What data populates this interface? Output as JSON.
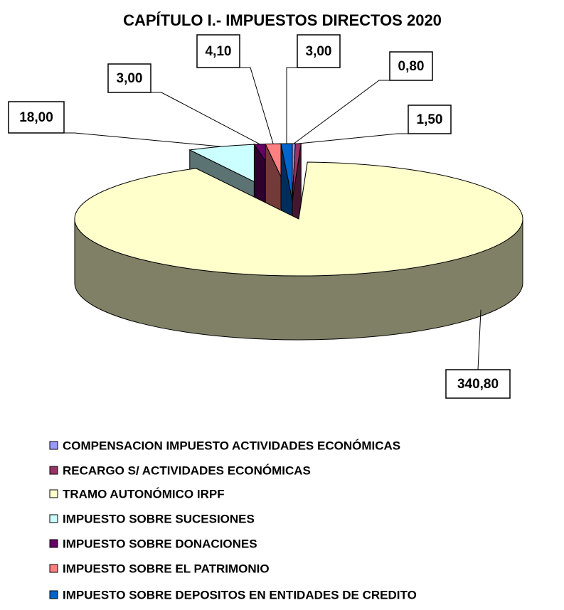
{
  "chart_data": {
    "type": "pie",
    "title": "CAPÍTULO I.- IMPUESTOS DIRECTOS 2020",
    "categories": [
      "COMPENSACION IMPUESTO ACTIVIDADES ECONÓMICAS",
      "RECARGO S/ ACTIVIDADES ECONÓMICAS",
      "TRAMO AUTONÓMICO IRPF",
      "IMPUESTO SOBRE SUCESIONES",
      "IMPUESTO SOBRE DONACIONES",
      "IMPUESTO SOBRE EL PATRIMONIO",
      "IMPUESTO SOBRE DEPOSITOS EN ENTIDADES DE CREDITO"
    ],
    "values": [
      0.8,
      1.5,
      340.8,
      18.0,
      3.0,
      4.1,
      3.0
    ],
    "value_labels": [
      "0,80",
      "1,50",
      "340,80",
      "18,00",
      "3,00",
      "4,10",
      "3,00"
    ],
    "colors": [
      "#9999ff",
      "#993366",
      "#ffffcc",
      "#ccffff",
      "#660066",
      "#ff8080",
      "#0066cc"
    ],
    "legend": "bottom"
  }
}
